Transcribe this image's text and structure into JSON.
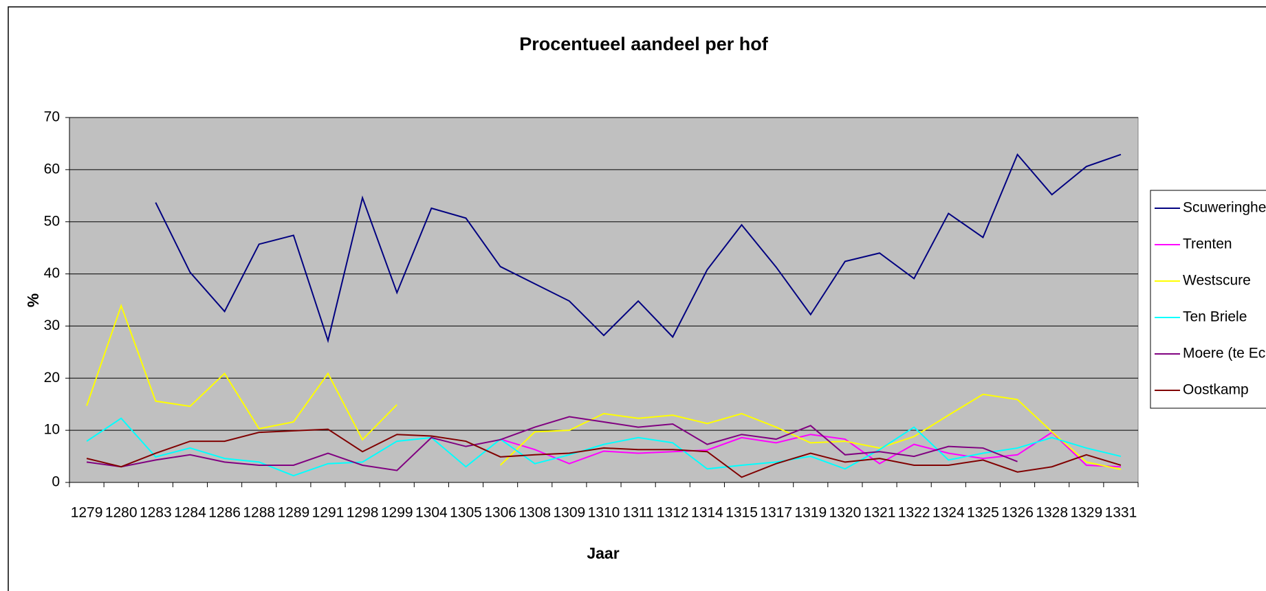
{
  "chart_data": {
    "type": "line",
    "title": "Procentueel aandeel per hof",
    "x_label": "Jaar",
    "y_label": "%",
    "categories": [
      "1279",
      "1280",
      "1283",
      "1284",
      "1286",
      "1288",
      "1289",
      "1291",
      "1298",
      "1299",
      "1304",
      "1305",
      "1306",
      "1308",
      "1309",
      "1310",
      "1311",
      "1312",
      "1314",
      "1315",
      "1317",
      "1319",
      "1320",
      "1321",
      "1322",
      "1324",
      "1325",
      "1326",
      "1328",
      "1329",
      "1331"
    ],
    "series": [
      {
        "name": "Scuweringhe",
        "color": "#000080",
        "values": [
          null,
          null,
          53.7,
          40.3,
          32.8,
          45.7,
          47.4,
          27.2,
          54.6,
          36.4,
          52.6,
          50.7,
          41.4,
          38.1,
          34.8,
          28.2,
          34.8,
          27.9,
          40.8,
          49.4,
          41.3,
          32.2,
          42.4,
          44.0,
          39.1,
          51.6,
          47.0,
          62.9,
          55.2,
          60.6,
          62.9
        ]
      },
      {
        "name": "Trenten",
        "color": "#ff00ff",
        "values": [
          null,
          null,
          null,
          null,
          null,
          null,
          null,
          null,
          null,
          null,
          null,
          null,
          8.3,
          6.3,
          3.6,
          6.0,
          5.6,
          5.9,
          6.2,
          8.6,
          7.6,
          9.2,
          8.3,
          3.6,
          7.3,
          5.6,
          4.6,
          5.3,
          9.6,
          3.3,
          3.0
        ]
      },
      {
        "name": "Westscure",
        "color": "#ffff00",
        "values": [
          14.7,
          33.9,
          15.6,
          14.6,
          20.9,
          10.3,
          11.6,
          20.9,
          8.2,
          14.9,
          null,
          null,
          3.3,
          9.7,
          10.0,
          13.2,
          12.3,
          12.9,
          11.3,
          13.2,
          10.6,
          7.6,
          7.9,
          6.6,
          8.8,
          12.9,
          16.9,
          15.9,
          9.7,
          3.9,
          2.5
        ]
      },
      {
        "name": "Ten Briele",
        "color": "#00ffff",
        "values": [
          7.9,
          12.3,
          4.9,
          6.6,
          4.6,
          3.9,
          1.3,
          3.6,
          3.9,
          7.9,
          8.6,
          3.0,
          8.3,
          3.6,
          5.3,
          7.3,
          8.6,
          7.6,
          2.6,
          3.3,
          3.9,
          5.0,
          2.6,
          6.3,
          10.6,
          4.3,
          5.6,
          6.6,
          8.6,
          6.6,
          5.0
        ]
      },
      {
        "name": "Moere (te Eclo",
        "color": "#800080",
        "values": [
          3.9,
          3.0,
          4.3,
          5.3,
          3.9,
          3.3,
          3.3,
          5.6,
          3.3,
          2.3,
          8.6,
          6.9,
          8.2,
          10.6,
          12.6,
          11.6,
          10.6,
          11.2,
          7.3,
          9.2,
          8.3,
          10.9,
          5.3,
          5.9,
          5.0,
          6.9,
          6.6,
          4.0,
          null,
          null,
          null
        ]
      },
      {
        "name": "Oostkamp",
        "color": "#800000",
        "values": [
          4.6,
          3.0,
          5.6,
          7.9,
          7.9,
          9.6,
          9.9,
          10.2,
          5.9,
          9.2,
          8.9,
          7.9,
          4.9,
          5.3,
          5.6,
          6.6,
          6.3,
          6.3,
          5.9,
          1.0,
          3.6,
          5.6,
          3.9,
          4.6,
          3.3,
          3.3,
          4.3,
          2.0,
          3.0,
          5.3,
          3.3
        ]
      }
    ],
    "ylim": [
      0,
      70
    ],
    "yticks": [
      0,
      10,
      20,
      30,
      40,
      50,
      60,
      70
    ],
    "grid": true,
    "legend": "right",
    "plot_background": "#c0c0c0"
  }
}
